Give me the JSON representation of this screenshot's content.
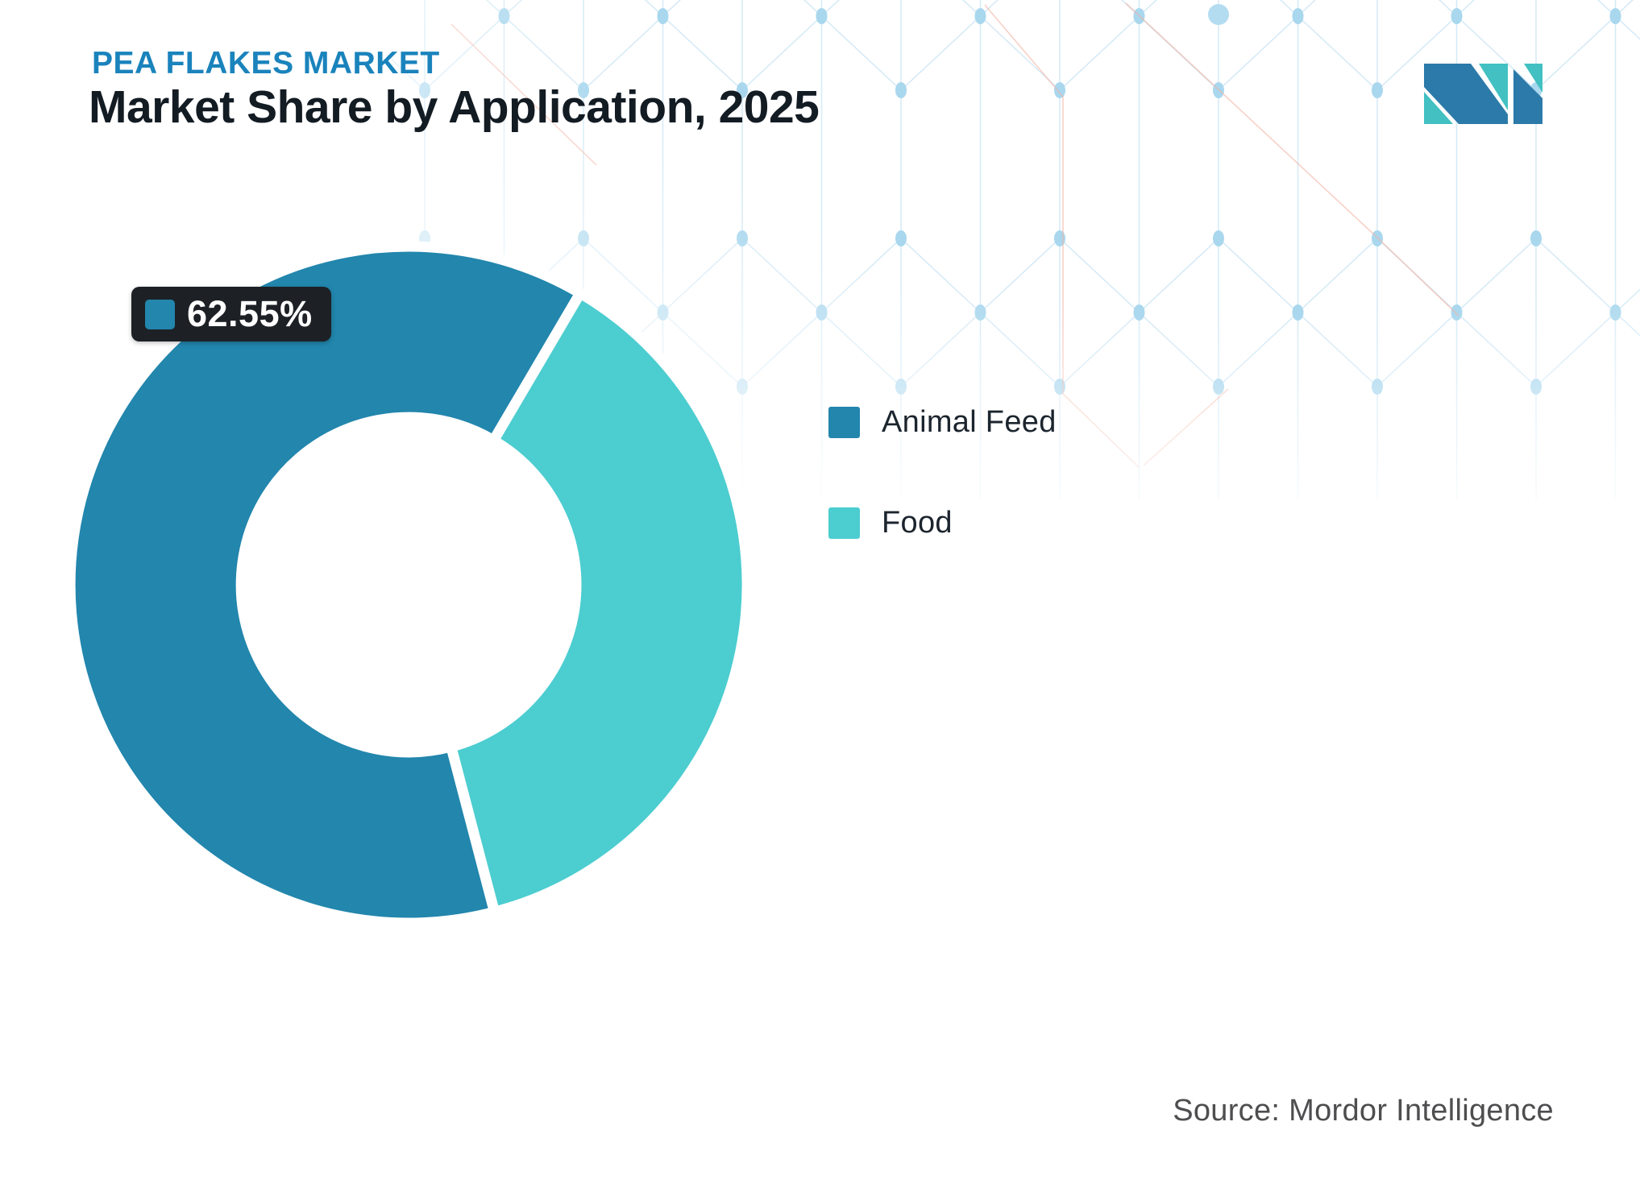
{
  "header": {
    "report_title": "PEA FLAKES MARKET",
    "chart_title": "Market Share by Application, 2025"
  },
  "tooltip": {
    "value": "62.55%",
    "swatch_color": "#2286ad",
    "background_color": "#1d2126"
  },
  "legend": {
    "items": [
      {
        "label": "Animal Feed",
        "color": "#2286ad"
      },
      {
        "label": "Food",
        "color": "#4ccdd0"
      }
    ]
  },
  "source": {
    "text": "Source: Mordor Intelligence"
  },
  "logo": {
    "blue": "#2b7aa9",
    "teal": "#42c0c2"
  },
  "background": {
    "line_color": "#d7ebf7",
    "dot_color": "#a9d7ee",
    "big_dot_color": "#b3dcf0",
    "accent_line_color": "#f2b2a2"
  },
  "chart_data": {
    "type": "pie",
    "title": "Market Share by Application, 2025",
    "categories": [
      "Animal Feed",
      "Food"
    ],
    "values": [
      62.55,
      37.45
    ],
    "colors": [
      "#2286ad",
      "#4ccdd0"
    ],
    "unit": "%",
    "donut_inner_radius_pct": 49.5,
    "start_angle_deg": 165.3,
    "data_labels": [
      "62.55%"
    ],
    "legend_position": "right-middle",
    "source": "Source: Mordor Intelligence"
  }
}
